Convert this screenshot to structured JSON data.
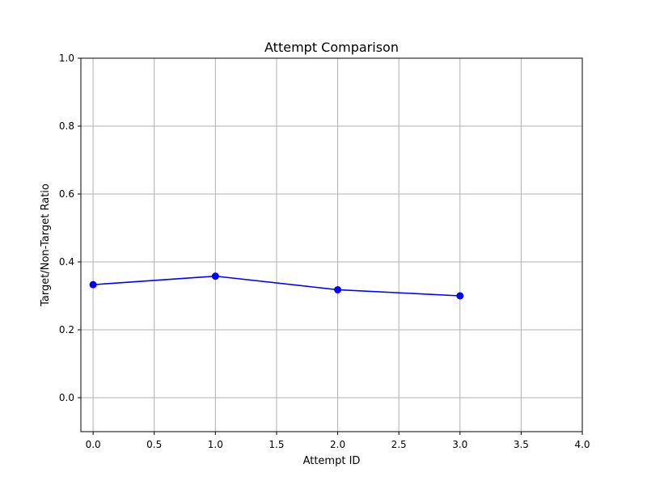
{
  "chart_data": {
    "type": "line",
    "title": "Attempt Comparison",
    "xlabel": "Attempt ID",
    "ylabel": "Target/Non-Target Ratio",
    "xlim": [
      -0.1,
      4.0
    ],
    "ylim": [
      -0.1,
      1.0
    ],
    "xticks": [
      0.0,
      0.5,
      1.0,
      1.5,
      2.0,
      2.5,
      3.0,
      3.5,
      4.0
    ],
    "yticks": [
      0.0,
      0.2,
      0.4,
      0.6,
      0.8,
      1.0
    ],
    "xtick_labels": [
      "0.0",
      "0.5",
      "1.0",
      "1.5",
      "2.0",
      "2.5",
      "3.0",
      "3.5",
      "4.0"
    ],
    "ytick_labels": [
      "0.0",
      "0.2",
      "0.4",
      "0.6",
      "0.8",
      "1.0"
    ],
    "grid": true,
    "series": [
      {
        "color": "#0000ff",
        "marker": "circle",
        "x": [
          0,
          1,
          2,
          3
        ],
        "y": [
          0.333,
          0.358,
          0.318,
          0.3
        ]
      }
    ]
  }
}
